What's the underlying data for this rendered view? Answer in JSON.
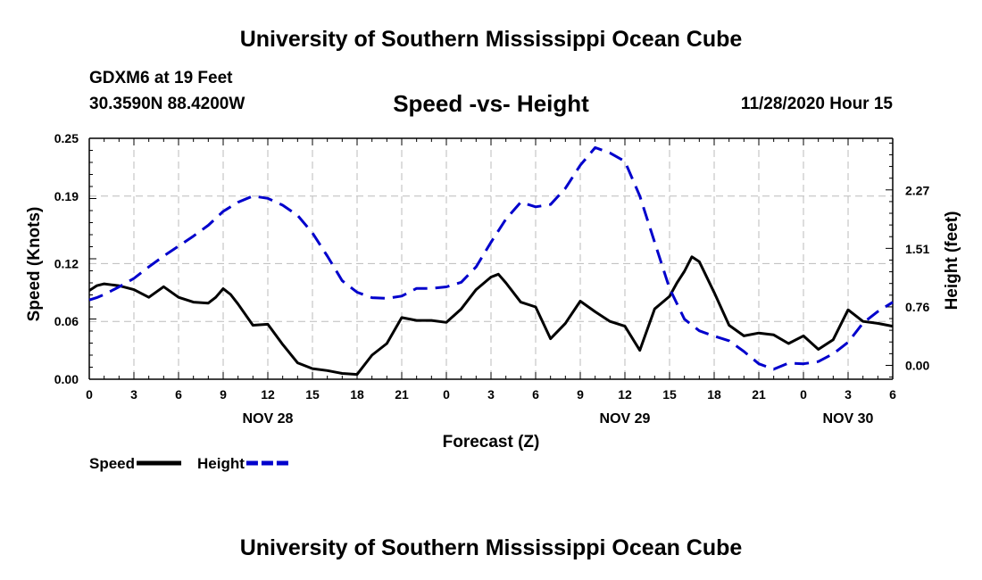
{
  "header": {
    "title": "University of Southern Mississippi Ocean Cube",
    "station": "GDXM6 at 19 Feet",
    "coordinates": "30.3590N 88.4200W",
    "datetime": "11/28/2020 Hour 15"
  },
  "footer": {
    "title": "University of Southern Mississippi Ocean Cube"
  },
  "colors": {
    "speed": "#000000",
    "height": "#0000cc",
    "grid": "#bbbbbb"
  },
  "chart_data": {
    "type": "line",
    "title": "Speed -vs- Height",
    "xlabel": "Forecast (Z)",
    "ylabel": "Speed (Knots)",
    "y2label": "Height (feet)",
    "grid": true,
    "x_range": [
      0,
      54
    ],
    "ylim": [
      0,
      0.25
    ],
    "y2lim": [
      -0.18,
      2.95
    ],
    "x_ticks": [
      0,
      3,
      6,
      9,
      12,
      15,
      18,
      21,
      24,
      27,
      30,
      33,
      36,
      39,
      42,
      45,
      48,
      51,
      54
    ],
    "x_tick_labels": [
      "0",
      "3",
      "6",
      "9",
      "12",
      "15",
      "18",
      "21",
      "0",
      "3",
      "6",
      "9",
      "12",
      "15",
      "18",
      "21",
      "0",
      "3",
      "6"
    ],
    "y_ticks": [
      "0.00",
      "0.06",
      "0.12",
      "0.19",
      "0.25"
    ],
    "y2_ticks": [
      "0.00",
      "0.76",
      "1.51",
      "2.27"
    ],
    "date_labels": [
      {
        "x": 12,
        "label": "NOV 28"
      },
      {
        "x": 36,
        "label": "NOV 29"
      },
      {
        "x": 51,
        "label": "NOV 30"
      }
    ],
    "series": [
      {
        "name": "Speed",
        "axis": "left",
        "style": "solid",
        "x": [
          0,
          0.5,
          1,
          1.5,
          2,
          3,
          4,
          5,
          6,
          7,
          8,
          8.5,
          9,
          9.5,
          10,
          11,
          12,
          13,
          14,
          15,
          16,
          17,
          18,
          19,
          20,
          21,
          22,
          23,
          24,
          25,
          26,
          27,
          27.5,
          28,
          29,
          30,
          31,
          32,
          33,
          34,
          35,
          36,
          37,
          38,
          39,
          39.5,
          40,
          40.5,
          41,
          42,
          43,
          44,
          45,
          46,
          47,
          48,
          49,
          50,
          51,
          52,
          53,
          54
        ],
        "values": [
          0.092,
          0.097,
          0.099,
          0.098,
          0.097,
          0.093,
          0.085,
          0.096,
          0.085,
          0.08,
          0.079,
          0.085,
          0.094,
          0.088,
          0.078,
          0.056,
          0.057,
          0.036,
          0.017,
          0.011,
          0.009,
          0.006,
          0.005,
          0.025,
          0.037,
          0.064,
          0.061,
          0.061,
          0.059,
          0.073,
          0.093,
          0.106,
          0.109,
          0.1,
          0.08,
          0.075,
          0.042,
          0.058,
          0.081,
          0.07,
          0.06,
          0.055,
          0.03,
          0.073,
          0.086,
          0.1,
          0.112,
          0.127,
          0.122,
          0.09,
          0.056,
          0.045,
          0.048,
          0.046,
          0.037,
          0.045,
          0.031,
          0.041,
          0.072,
          0.06,
          0.058,
          0.055
        ]
      },
      {
        "name": "Height",
        "axis": "right",
        "style": "dashed",
        "x": [
          0,
          0.5,
          1,
          2,
          3,
          4,
          5,
          6,
          7,
          8,
          9,
          10,
          11,
          12,
          13,
          14,
          15,
          16,
          17,
          18,
          19,
          20,
          21,
          22,
          23,
          24,
          25,
          26,
          27,
          28,
          29,
          30,
          31,
          32,
          33,
          34,
          35,
          36,
          37,
          38,
          39,
          40,
          41,
          42,
          43,
          44,
          45,
          46,
          47,
          48,
          49,
          50,
          51,
          52,
          53,
          54
        ],
        "values": [
          0.85,
          0.88,
          0.92,
          1.02,
          1.13,
          1.28,
          1.42,
          1.55,
          1.68,
          1.82,
          2.0,
          2.12,
          2.2,
          2.17,
          2.08,
          1.95,
          1.72,
          1.42,
          1.1,
          0.95,
          0.88,
          0.87,
          0.9,
          1.0,
          1.0,
          1.02,
          1.08,
          1.28,
          1.6,
          1.9,
          2.12,
          2.06,
          2.09,
          2.3,
          2.6,
          2.83,
          2.76,
          2.65,
          2.2,
          1.6,
          1.0,
          0.6,
          0.45,
          0.38,
          0.32,
          0.18,
          0.02,
          -0.05,
          0.03,
          0.02,
          0.05,
          0.15,
          0.3,
          0.55,
          0.7,
          0.82
        ]
      }
    ],
    "legend": [
      {
        "label": "Speed",
        "series": "Speed"
      },
      {
        "label": "Height",
        "series": "Height"
      }
    ],
    "legend_position": "bottom-left"
  }
}
